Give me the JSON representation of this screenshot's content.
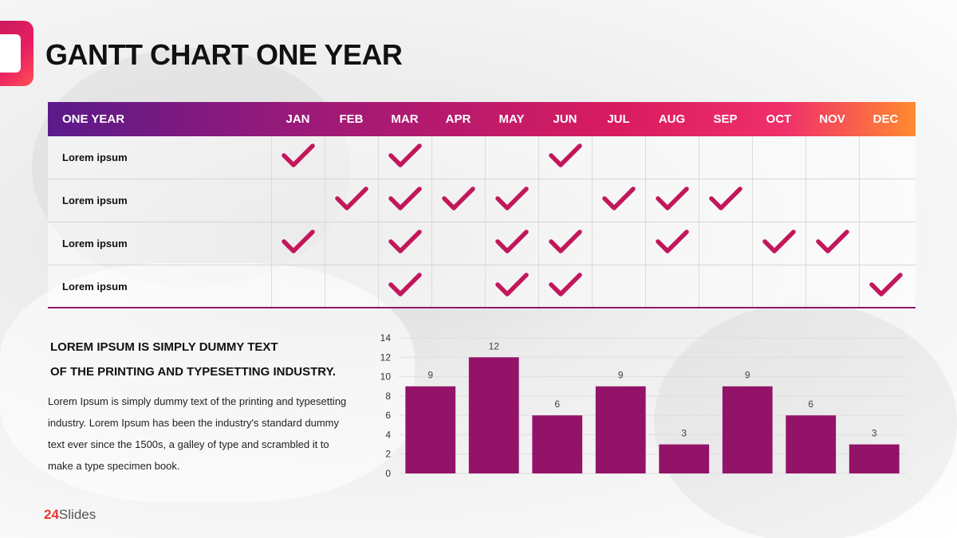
{
  "title": "GANTT CHART ONE YEAR",
  "gantt": {
    "header_label": "ONE YEAR",
    "months": [
      "JAN",
      "FEB",
      "MAR",
      "APR",
      "MAY",
      "JUN",
      "JUL",
      "AUG",
      "SEP",
      "OCT",
      "NOV",
      "DEC"
    ],
    "rows": [
      {
        "label": "Lorem ipsum",
        "checks": [
          1,
          0,
          1,
          0,
          0,
          1,
          0,
          0,
          0,
          0,
          0,
          0
        ]
      },
      {
        "label": "Lorem ipsum",
        "checks": [
          0,
          1,
          1,
          1,
          1,
          0,
          1,
          1,
          1,
          0,
          0,
          0
        ]
      },
      {
        "label": "Lorem ipsum",
        "checks": [
          1,
          0,
          1,
          0,
          1,
          1,
          0,
          1,
          0,
          1,
          1,
          0
        ]
      },
      {
        "label": "Lorem ipsum",
        "checks": [
          0,
          0,
          1,
          0,
          1,
          1,
          0,
          0,
          0,
          0,
          0,
          1
        ]
      }
    ],
    "check_color": "#c2185b"
  },
  "text": {
    "heading_line1": "LOREM IPSUM IS SIMPLY DUMMY TEXT",
    "heading_line2": "OF THE PRINTING AND TYPESETTING INDUSTRY.",
    "body": "Lorem Ipsum is simply dummy text of the printing and typesetting industry. Lorem Ipsum has been the industry's standard dummy text ever since the 1500s, a galley of type and scrambled it to make a type specimen book."
  },
  "chart_data": {
    "type": "bar",
    "categories": [
      "",
      "",
      "",
      "",
      "",
      "",
      "",
      ""
    ],
    "values": [
      9,
      12,
      6,
      9,
      3,
      9,
      6,
      3
    ],
    "ylim": [
      0,
      14
    ],
    "yticks": [
      0,
      2,
      4,
      6,
      8,
      10,
      12,
      14
    ],
    "grid": true,
    "bar_color": "#931368",
    "title": "",
    "xlabel": "",
    "ylabel": ""
  },
  "brand": {
    "num": "24",
    "name": "Slides"
  }
}
